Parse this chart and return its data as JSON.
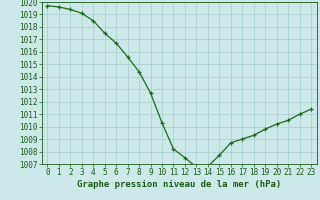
{
  "x": [
    0,
    1,
    2,
    3,
    4,
    5,
    6,
    7,
    8,
    9,
    10,
    11,
    12,
    13,
    14,
    15,
    16,
    17,
    18,
    19,
    20,
    21,
    22,
    23
  ],
  "y": [
    1019.7,
    1019.6,
    1019.4,
    1019.1,
    1018.5,
    1017.5,
    1016.7,
    1015.6,
    1014.4,
    1012.7,
    1010.3,
    1008.2,
    1007.5,
    1006.75,
    1006.8,
    1007.7,
    1008.7,
    1009.0,
    1009.3,
    1009.8,
    1010.2,
    1010.5,
    1011.0,
    1011.4
  ],
  "line_color": "#1a6b1a",
  "marker_color": "#1a6b1a",
  "bg_color": "#cce8e8",
  "grid_color": "#a8cccc",
  "xlabel": "Graphe pression niveau de la mer (hPa)",
  "ylim_min": 1007,
  "ylim_max": 1020,
  "xlim_min": -0.5,
  "xlim_max": 23.5,
  "ytick_step": 1,
  "xtick_labels": [
    "0",
    "1",
    "2",
    "3",
    "4",
    "5",
    "6",
    "7",
    "8",
    "9",
    "10",
    "11",
    "12",
    "13",
    "14",
    "15",
    "16",
    "17",
    "18",
    "19",
    "20",
    "21",
    "22",
    "23"
  ],
  "xlabel_fontsize": 6.5,
  "tick_fontsize": 5.5,
  "tick_color": "#1a5c1a",
  "axis_color": "#1a5c1a",
  "linewidth": 0.9,
  "markersize": 3.5,
  "markeredgewidth": 0.9
}
